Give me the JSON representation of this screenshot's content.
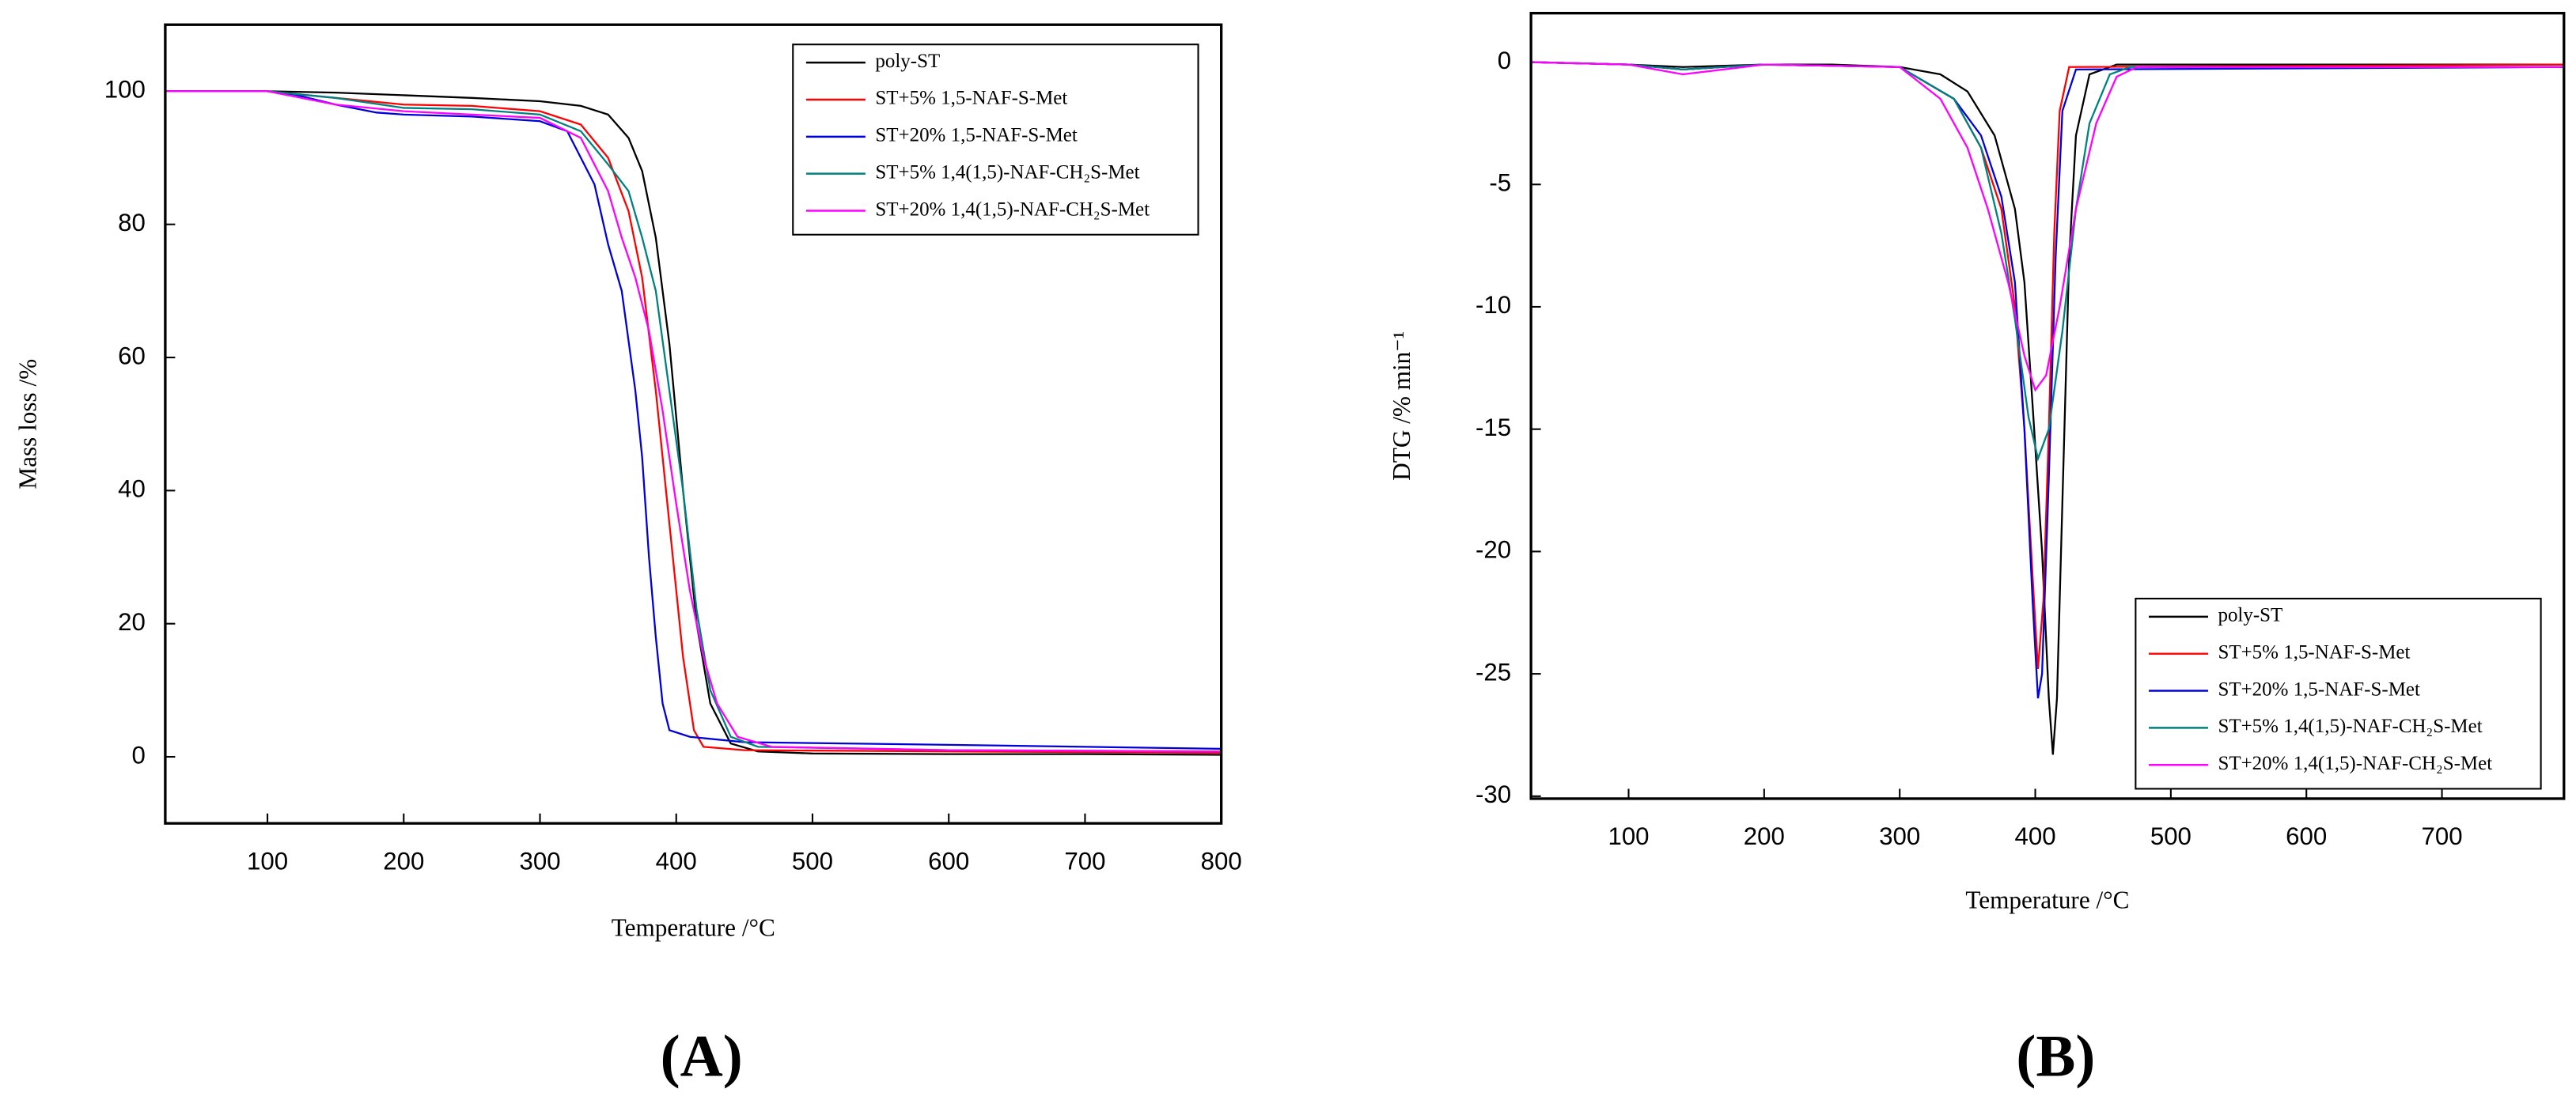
{
  "chart_data": [
    {
      "type": "line",
      "panel_label": "(A)",
      "x_label": "Temperature /°C",
      "y_label": "Mass loss /%",
      "xlim": [
        25,
        800
      ],
      "ylim": [
        -10,
        110
      ],
      "xticks": [
        100,
        200,
        300,
        400,
        500,
        600,
        700,
        800
      ],
      "yticks": [
        0,
        20,
        40,
        60,
        80,
        100
      ],
      "legend": "upper right",
      "series": [
        {
          "name": "poly-ST",
          "color": "#000000",
          "x": [
            25,
            100,
            150,
            200,
            250,
            300,
            330,
            350,
            365,
            375,
            385,
            395,
            405,
            415,
            425,
            440,
            460,
            500,
            600,
            700,
            800
          ],
          "values": [
            100,
            100,
            99.8,
            99.4,
            99,
            98.5,
            97.8,
            96.5,
            93,
            88,
            78,
            62,
            40,
            20,
            8,
            2,
            0.8,
            0.5,
            0.4,
            0.4,
            0.3
          ]
        },
        {
          "name": "ST+5% 1,5-NAF-S-Met",
          "color": "#ff0000",
          "x": [
            25,
            100,
            150,
            200,
            250,
            300,
            330,
            350,
            365,
            375,
            385,
            395,
            405,
            413,
            420,
            450,
            600,
            800
          ],
          "values": [
            100,
            100,
            99,
            98,
            97.8,
            97,
            95,
            90,
            82,
            72,
            55,
            35,
            15,
            4,
            1.5,
            1,
            0.8,
            0.6
          ]
        },
        {
          "name": "ST+20% 1,5-NAF-S-Met",
          "color": "#0000dd",
          "x": [
            25,
            100,
            120,
            150,
            180,
            200,
            250,
            300,
            320,
            340,
            350,
            360,
            370,
            375,
            380,
            385,
            390,
            395,
            410,
            450,
            600,
            800
          ],
          "values": [
            100,
            100,
            99.5,
            98,
            96.8,
            96.5,
            96.2,
            95.5,
            94,
            86,
            77,
            70,
            55,
            45,
            30,
            18,
            8,
            4,
            3,
            2.2,
            1.8,
            1.2
          ]
        },
        {
          "name": "ST+5% 1,4(1,5)-NAF-CH₂S-Met",
          "color": "#008080",
          "x": [
            25,
            100,
            150,
            200,
            250,
            300,
            330,
            350,
            365,
            375,
            385,
            395,
            405,
            415,
            425,
            440,
            460,
            600,
            800
          ],
          "values": [
            100,
            100,
            99,
            97.5,
            97.3,
            96.5,
            94,
            89,
            85,
            78,
            70,
            55,
            40,
            22,
            10,
            3,
            1.5,
            1,
            0.8
          ]
        },
        {
          "name": "ST+20% 1,4(1,5)-NAF-CH₂S-Met",
          "color": "#ff00ff",
          "x": [
            25,
            100,
            150,
            200,
            250,
            300,
            330,
            350,
            360,
            370,
            380,
            390,
            400,
            410,
            420,
            430,
            445,
            470,
            600,
            800
          ],
          "values": [
            100,
            100,
            98,
            97,
            96.5,
            96,
            93,
            85,
            78,
            72,
            64,
            52,
            38,
            25,
            15,
            8,
            3,
            1.5,
            1,
            0.8
          ]
        }
      ]
    },
    {
      "type": "line",
      "panel_label": "(B)",
      "x_label": "Temperature /°C",
      "y_label": "DTG /% min⁻¹",
      "xlim": [
        28,
        790
      ],
      "ylim": [
        -30.1,
        2
      ],
      "xticks": [
        100,
        200,
        300,
        400,
        500,
        600,
        700
      ],
      "yticks": [
        -30,
        -25,
        -20,
        -15,
        -10,
        -5,
        0
      ],
      "legend": "lower right",
      "series": [
        {
          "name": "poly-ST",
          "color": "#000000",
          "x": [
            28,
            100,
            140,
            200,
            250,
            300,
            330,
            350,
            370,
            385,
            392,
            398,
            405,
            410,
            413,
            416,
            420,
            425,
            430,
            440,
            460,
            790
          ],
          "values": [
            0,
            -0.1,
            -0.2,
            -0.1,
            -0.1,
            -0.2,
            -0.5,
            -1.2,
            -3,
            -6,
            -9,
            -14,
            -20,
            -26,
            -28.3,
            -26,
            -18,
            -8,
            -3,
            -0.5,
            -0.1,
            -0.1
          ]
        },
        {
          "name": "ST+5% 1,5-NAF-S-Met",
          "color": "#ff0000",
          "x": [
            28,
            100,
            140,
            200,
            300,
            340,
            360,
            375,
            385,
            392,
            398,
            402,
            406,
            410,
            414,
            418,
            425,
            790
          ],
          "values": [
            0,
            -0.1,
            -0.3,
            -0.1,
            -0.2,
            -1.5,
            -3.5,
            -6,
            -10,
            -15,
            -21,
            -24.8,
            -22,
            -15,
            -7,
            -2,
            -0.2,
            -0.1
          ]
        },
        {
          "name": "ST+20% 1,5-NAF-S-Met",
          "color": "#0000dd",
          "x": [
            28,
            100,
            140,
            200,
            300,
            340,
            360,
            375,
            385,
            392,
            398,
            402,
            405,
            410,
            415,
            420,
            430,
            790
          ],
          "values": [
            0,
            -0.1,
            -0.3,
            -0.1,
            -0.2,
            -1.5,
            -3,
            -5.5,
            -9,
            -15,
            -22,
            -26,
            -25,
            -17,
            -8,
            -2,
            -0.3,
            -0.2
          ]
        },
        {
          "name": "ST+5% 1,4(1,5)-NAF-CH₂S-Met",
          "color": "#008080",
          "x": [
            28,
            100,
            140,
            200,
            300,
            340,
            360,
            375,
            385,
            395,
            402,
            410,
            420,
            430,
            440,
            455,
            470,
            790
          ],
          "values": [
            0,
            -0.1,
            -0.3,
            -0.1,
            -0.2,
            -1.5,
            -3.5,
            -7,
            -10.5,
            -14.5,
            -16.2,
            -15,
            -11,
            -6,
            -2.5,
            -0.5,
            -0.2,
            -0.2
          ]
        },
        {
          "name": "ST+20% 1,4(1,5)-NAF-CH₂S-Met",
          "color": "#ff00ff",
          "x": [
            28,
            100,
            140,
            200,
            300,
            330,
            350,
            365,
            380,
            392,
            400,
            408,
            418,
            430,
            445,
            460,
            475,
            790
          ],
          "values": [
            0,
            -0.1,
            -0.5,
            -0.1,
            -0.2,
            -1.5,
            -3.5,
            -6,
            -9,
            -12,
            -13.4,
            -12.8,
            -10,
            -6,
            -2.5,
            -0.6,
            -0.2,
            -0.2
          ]
        }
      ]
    }
  ]
}
